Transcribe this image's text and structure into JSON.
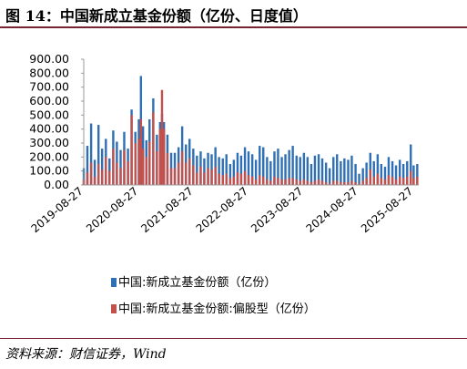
{
  "header": {
    "title": "图 14：中国新成立基金份额（亿份、日度值）"
  },
  "footer": {
    "source": "资料来源：财信证券，Wind"
  },
  "colors": {
    "accent_rule": "#7a2331",
    "series_total": "#2e6fb5",
    "series_equity": "#c2504d"
  },
  "chart_data": {
    "type": "bar",
    "title": "图 14：中国新成立基金份额（亿份、日度值）",
    "xlabel": "",
    "ylabel": "",
    "ylim": [
      0,
      900
    ],
    "yticks": [
      "900.00",
      "800.00",
      "700.00",
      "600.00",
      "500.00",
      "400.00",
      "300.00",
      "200.00",
      "100.00",
      "0.00"
    ],
    "ytick_values": [
      900,
      800,
      700,
      600,
      500,
      400,
      300,
      200,
      100,
      0
    ],
    "xticks": [
      "2019-08-27",
      "2020-08-27",
      "2021-08-27",
      "2022-08-27",
      "2023-08-27",
      "2024-08-27",
      "2025-08-27"
    ],
    "xlim": [
      "2019-08-27",
      "2025-09-30"
    ],
    "grid": false,
    "legend_position": "bottom",
    "sampling": "approximate weekly peaks read from a daily-frequency chart",
    "series": [
      {
        "name": "中国:新成立基金份额（亿份）",
        "color": "#2e6fb5",
        "values": [
          {
            "date": "2019-08-27",
            "value": 120
          },
          {
            "date": "2019-09-20",
            "value": 280
          },
          {
            "date": "2019-10-15",
            "value": 440
          },
          {
            "date": "2019-11-08",
            "value": 180
          },
          {
            "date": "2019-12-03",
            "value": 430
          },
          {
            "date": "2019-12-27",
            "value": 260
          },
          {
            "date": "2020-01-21",
            "value": 330
          },
          {
            "date": "2020-02-14",
            "value": 190
          },
          {
            "date": "2020-03-10",
            "value": 390
          },
          {
            "date": "2020-04-03",
            "value": 310
          },
          {
            "date": "2020-04-28",
            "value": 250
          },
          {
            "date": "2020-05-22",
            "value": 380
          },
          {
            "date": "2020-06-16",
            "value": 260
          },
          {
            "date": "2020-07-10",
            "value": 540
          },
          {
            "date": "2020-08-04",
            "value": 380
          },
          {
            "date": "2020-08-27",
            "value": 470
          },
          {
            "date": "2020-09-10",
            "value": 780
          },
          {
            "date": "2020-09-24",
            "value": 420
          },
          {
            "date": "2020-10-16",
            "value": 320
          },
          {
            "date": "2020-11-06",
            "value": 470
          },
          {
            "date": "2020-12-01",
            "value": 620
          },
          {
            "date": "2020-12-25",
            "value": 360
          },
          {
            "date": "2021-01-15",
            "value": 450
          },
          {
            "date": "2021-01-28",
            "value": 510
          },
          {
            "date": "2021-02-10",
            "value": 450
          },
          {
            "date": "2021-03-05",
            "value": 360
          },
          {
            "date": "2021-03-30",
            "value": 230
          },
          {
            "date": "2021-04-23",
            "value": 230
          },
          {
            "date": "2021-05-18",
            "value": 270
          },
          {
            "date": "2021-06-11",
            "value": 420
          },
          {
            "date": "2021-07-06",
            "value": 290
          },
          {
            "date": "2021-07-30",
            "value": 330
          },
          {
            "date": "2021-08-24",
            "value": 260
          },
          {
            "date": "2021-09-17",
            "value": 210
          },
          {
            "date": "2021-10-12",
            "value": 240
          },
          {
            "date": "2021-11-05",
            "value": 190
          },
          {
            "date": "2021-11-30",
            "value": 230
          },
          {
            "date": "2021-12-24",
            "value": 220
          },
          {
            "date": "2022-01-18",
            "value": 270
          },
          {
            "date": "2022-02-11",
            "value": 200
          },
          {
            "date": "2022-03-08",
            "value": 190
          },
          {
            "date": "2022-04-01",
            "value": 220
          },
          {
            "date": "2022-04-26",
            "value": 150
          },
          {
            "date": "2022-05-20",
            "value": 180
          },
          {
            "date": "2022-06-14",
            "value": 230
          },
          {
            "date": "2022-07-08",
            "value": 210
          },
          {
            "date": "2022-08-02",
            "value": 270
          },
          {
            "date": "2022-08-26",
            "value": 240
          },
          {
            "date": "2022-09-20",
            "value": 220
          },
          {
            "date": "2022-10-14",
            "value": 180
          },
          {
            "date": "2022-11-08",
            "value": 280
          },
          {
            "date": "2022-12-02",
            "value": 270
          },
          {
            "date": "2022-12-27",
            "value": 200
          },
          {
            "date": "2023-01-20",
            "value": 170
          },
          {
            "date": "2023-02-14",
            "value": 240
          },
          {
            "date": "2023-03-10",
            "value": 260
          },
          {
            "date": "2023-04-04",
            "value": 200
          },
          {
            "date": "2023-04-28",
            "value": 220
          },
          {
            "date": "2023-05-23",
            "value": 250
          },
          {
            "date": "2023-06-16",
            "value": 280
          },
          {
            "date": "2023-07-11",
            "value": 210
          },
          {
            "date": "2023-08-04",
            "value": 200
          },
          {
            "date": "2023-08-29",
            "value": 230
          },
          {
            "date": "2023-09-22",
            "value": 200
          },
          {
            "date": "2023-10-17",
            "value": 150
          },
          {
            "date": "2023-11-10",
            "value": 210
          },
          {
            "date": "2023-12-05",
            "value": 220
          },
          {
            "date": "2023-12-29",
            "value": 190
          },
          {
            "date": "2024-01-23",
            "value": 160
          },
          {
            "date": "2024-02-16",
            "value": 120
          },
          {
            "date": "2024-03-12",
            "value": 200
          },
          {
            "date": "2024-04-05",
            "value": 220
          },
          {
            "date": "2024-04-30",
            "value": 170
          },
          {
            "date": "2024-05-24",
            "value": 190
          },
          {
            "date": "2024-06-18",
            "value": 180
          },
          {
            "date": "2024-07-12",
            "value": 210
          },
          {
            "date": "2024-08-06",
            "value": 150
          },
          {
            "date": "2024-08-30",
            "value": 80
          },
          {
            "date": "2024-09-24",
            "value": 120
          },
          {
            "date": "2024-10-18",
            "value": 160
          },
          {
            "date": "2024-11-12",
            "value": 230
          },
          {
            "date": "2024-12-06",
            "value": 170
          },
          {
            "date": "2024-12-31",
            "value": 220
          },
          {
            "date": "2025-01-24",
            "value": 150
          },
          {
            "date": "2025-02-18",
            "value": 130
          },
          {
            "date": "2025-03-14",
            "value": 200
          },
          {
            "date": "2025-04-08",
            "value": 170
          },
          {
            "date": "2025-05-02",
            "value": 140
          },
          {
            "date": "2025-05-27",
            "value": 180
          },
          {
            "date": "2025-06-20",
            "value": 150
          },
          {
            "date": "2025-07-15",
            "value": 170
          },
          {
            "date": "2025-08-08",
            "value": 290
          },
          {
            "date": "2025-08-27",
            "value": 140
          },
          {
            "date": "2025-09-20",
            "value": 150
          }
        ]
      },
      {
        "name": "中国:新成立基金份额:偏股型（亿份）",
        "color": "#c2504d",
        "values": [
          {
            "date": "2019-08-27",
            "value": 40
          },
          {
            "date": "2019-09-20",
            "value": 90
          },
          {
            "date": "2019-10-15",
            "value": 160
          },
          {
            "date": "2019-11-08",
            "value": 60
          },
          {
            "date": "2019-12-03",
            "value": 150
          },
          {
            "date": "2019-12-27",
            "value": 110
          },
          {
            "date": "2020-01-21",
            "value": 200
          },
          {
            "date": "2020-02-14",
            "value": 100
          },
          {
            "date": "2020-03-10",
            "value": 260
          },
          {
            "date": "2020-04-03",
            "value": 160
          },
          {
            "date": "2020-04-28",
            "value": 120
          },
          {
            "date": "2020-05-22",
            "value": 250
          },
          {
            "date": "2020-06-16",
            "value": 170
          },
          {
            "date": "2020-07-10",
            "value": 500
          },
          {
            "date": "2020-08-04",
            "value": 300
          },
          {
            "date": "2020-08-27",
            "value": 330
          },
          {
            "date": "2020-09-10",
            "value": 470
          },
          {
            "date": "2020-09-24",
            "value": 260
          },
          {
            "date": "2020-10-16",
            "value": 200
          },
          {
            "date": "2020-11-06",
            "value": 310
          },
          {
            "date": "2020-12-01",
            "value": 520
          },
          {
            "date": "2020-12-25",
            "value": 240
          },
          {
            "date": "2021-01-15",
            "value": 400
          },
          {
            "date": "2021-01-28",
            "value": 680
          },
          {
            "date": "2021-02-10",
            "value": 400
          },
          {
            "date": "2021-03-05",
            "value": 230
          },
          {
            "date": "2021-03-30",
            "value": 120
          },
          {
            "date": "2021-04-23",
            "value": 120
          },
          {
            "date": "2021-05-18",
            "value": 160
          },
          {
            "date": "2021-06-11",
            "value": 240
          },
          {
            "date": "2021-07-06",
            "value": 160
          },
          {
            "date": "2021-07-30",
            "value": 190
          },
          {
            "date": "2021-08-24",
            "value": 140
          },
          {
            "date": "2021-09-17",
            "value": 90
          },
          {
            "date": "2021-10-12",
            "value": 130
          },
          {
            "date": "2021-11-05",
            "value": 90
          },
          {
            "date": "2021-11-30",
            "value": 120
          },
          {
            "date": "2021-12-24",
            "value": 110
          },
          {
            "date": "2022-01-18",
            "value": 130
          },
          {
            "date": "2022-02-11",
            "value": 80
          },
          {
            "date": "2022-03-08",
            "value": 70
          },
          {
            "date": "2022-04-01",
            "value": 80
          },
          {
            "date": "2022-04-26",
            "value": 50
          },
          {
            "date": "2022-05-20",
            "value": 60
          },
          {
            "date": "2022-06-14",
            "value": 90
          },
          {
            "date": "2022-07-08",
            "value": 80
          },
          {
            "date": "2022-08-02",
            "value": 100
          },
          {
            "date": "2022-08-26",
            "value": 70
          },
          {
            "date": "2022-09-20",
            "value": 60
          },
          {
            "date": "2022-10-14",
            "value": 40
          },
          {
            "date": "2022-11-08",
            "value": 70
          },
          {
            "date": "2022-12-02",
            "value": 60
          },
          {
            "date": "2022-12-27",
            "value": 40
          },
          {
            "date": "2023-01-20",
            "value": 30
          },
          {
            "date": "2023-02-14",
            "value": 60
          },
          {
            "date": "2023-03-10",
            "value": 50
          },
          {
            "date": "2023-04-04",
            "value": 40
          },
          {
            "date": "2023-04-28",
            "value": 40
          },
          {
            "date": "2023-05-23",
            "value": 50
          },
          {
            "date": "2023-06-16",
            "value": 50
          },
          {
            "date": "2023-07-11",
            "value": 40
          },
          {
            "date": "2023-08-04",
            "value": 30
          },
          {
            "date": "2023-08-29",
            "value": 40
          },
          {
            "date": "2023-09-22",
            "value": 30
          },
          {
            "date": "2023-10-17",
            "value": 20
          },
          {
            "date": "2023-11-10",
            "value": 30
          },
          {
            "date": "2023-12-05",
            "value": 40
          },
          {
            "date": "2023-12-29",
            "value": 30
          },
          {
            "date": "2024-01-23",
            "value": 20
          },
          {
            "date": "2024-02-16",
            "value": 10
          },
          {
            "date": "2024-03-12",
            "value": 30
          },
          {
            "date": "2024-04-05",
            "value": 30
          },
          {
            "date": "2024-04-30",
            "value": 20
          },
          {
            "date": "2024-05-24",
            "value": 20
          },
          {
            "date": "2024-06-18",
            "value": 20
          },
          {
            "date": "2024-07-12",
            "value": 30
          },
          {
            "date": "2024-08-06",
            "value": 20
          },
          {
            "date": "2024-08-30",
            "value": 10
          },
          {
            "date": "2024-09-24",
            "value": 30
          },
          {
            "date": "2024-10-18",
            "value": 50
          },
          {
            "date": "2024-11-12",
            "value": 110
          },
          {
            "date": "2024-12-06",
            "value": 60
          },
          {
            "date": "2024-12-31",
            "value": 80
          },
          {
            "date": "2025-01-24",
            "value": 50
          },
          {
            "date": "2025-02-18",
            "value": 40
          },
          {
            "date": "2025-03-14",
            "value": 70
          },
          {
            "date": "2025-04-08",
            "value": 60
          },
          {
            "date": "2025-05-02",
            "value": 40
          },
          {
            "date": "2025-05-27",
            "value": 60
          },
          {
            "date": "2025-06-20",
            "value": 50
          },
          {
            "date": "2025-07-15",
            "value": 60
          },
          {
            "date": "2025-08-08",
            "value": 100
          },
          {
            "date": "2025-08-27",
            "value": 50
          },
          {
            "date": "2025-09-20",
            "value": 60
          }
        ]
      }
    ]
  }
}
